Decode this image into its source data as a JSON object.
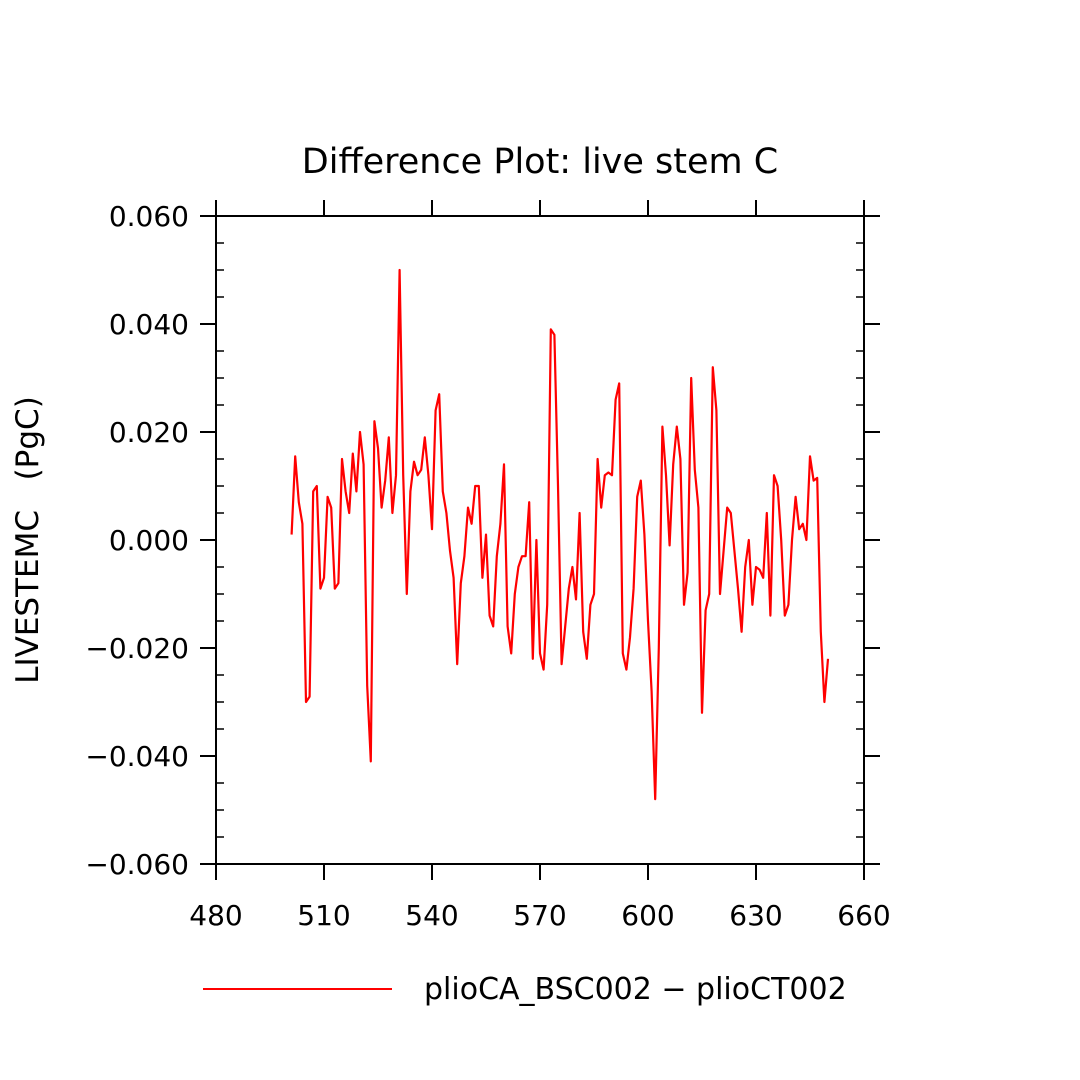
{
  "chart_data": {
    "type": "line",
    "title": "Difference Plot: live stem C",
    "xlabel": "",
    "ylabel": "LIVESTEMC   (PgC)",
    "xlim": [
      480,
      660
    ],
    "ylim": [
      -0.06,
      0.06
    ],
    "x_ticks": [
      480,
      510,
      540,
      570,
      600,
      630,
      660
    ],
    "x_tick_labels": [
      "480",
      "510",
      "540",
      "570",
      "600",
      "630",
      "660"
    ],
    "y_ticks": [
      -0.06,
      -0.04,
      -0.02,
      0.0,
      0.02,
      0.04,
      0.06
    ],
    "y_tick_labels": [
      "−0.060",
      "−0.040",
      "−0.020",
      "0.000",
      "0.020",
      "0.040",
      "0.060"
    ],
    "grid": false,
    "legend_position": "bottom",
    "series": [
      {
        "name": "plioCA_BSC002 − plioCT002",
        "color": "#ff0000",
        "x_start": 501,
        "x_step": 1,
        "values": [
          0.001,
          0.0155,
          0.007,
          0.003,
          -0.03,
          -0.029,
          0.009,
          0.01,
          -0.009,
          -0.007,
          0.008,
          0.006,
          -0.009,
          -0.008,
          0.015,
          0.009,
          0.005,
          0.016,
          0.009,
          0.02,
          0.014,
          -0.027,
          -0.041,
          0.022,
          0.017,
          0.006,
          0.011,
          0.019,
          0.005,
          0.012,
          0.05,
          0.012,
          -0.01,
          0.009,
          0.0145,
          0.012,
          0.013,
          0.019,
          0.012,
          0.002,
          0.024,
          0.027,
          0.009,
          0.005,
          -0.002,
          -0.007,
          -0.023,
          -0.008,
          -0.003,
          0.006,
          0.003,
          0.01,
          0.01,
          -0.007,
          0.001,
          -0.014,
          -0.016,
          -0.003,
          0.003,
          0.014,
          -0.016,
          -0.021,
          -0.01,
          -0.005,
          -0.003,
          -0.003,
          0.007,
          -0.022,
          0.0,
          -0.021,
          -0.024,
          -0.012,
          0.039,
          0.038,
          0.01,
          -0.023,
          -0.016,
          -0.009,
          -0.005,
          -0.011,
          0.005,
          -0.017,
          -0.022,
          -0.012,
          -0.01,
          0.015,
          0.006,
          0.012,
          0.0125,
          0.012,
          0.026,
          0.029,
          -0.021,
          -0.024,
          -0.018,
          -0.009,
          0.008,
          0.011,
          0.001,
          -0.015,
          -0.028,
          -0.048,
          -0.02,
          0.021,
          0.012,
          -0.001,
          0.014,
          0.021,
          0.015,
          -0.012,
          -0.006,
          0.03,
          0.013,
          0.006,
          -0.032,
          -0.013,
          -0.01,
          0.032,
          0.024,
          -0.01,
          -0.002,
          0.006,
          0.005,
          -0.002,
          -0.009,
          -0.017,
          -0.005,
          0.0,
          -0.012,
          -0.005,
          -0.0055,
          -0.007,
          0.005,
          -0.014,
          0.012,
          0.01,
          0.0,
          -0.014,
          -0.012,
          0.0,
          0.008,
          0.002,
          0.003,
          0.0,
          0.0155,
          0.011,
          0.0115,
          -0.017,
          -0.03,
          -0.022
        ]
      }
    ]
  }
}
